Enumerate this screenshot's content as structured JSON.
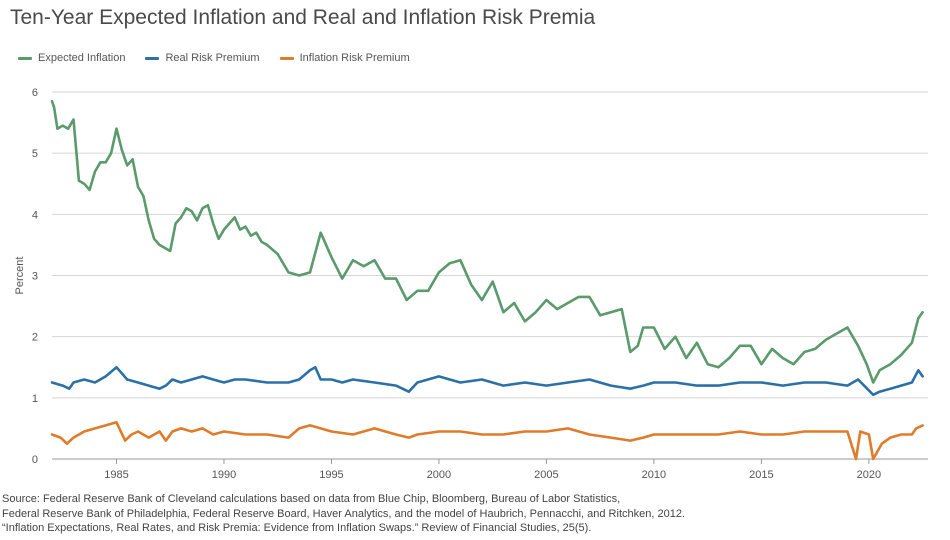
{
  "page": {
    "title": "Ten-Year Expected Inflation and Real and Inflation Risk Premia",
    "source_lines": [
      "Source: Federal Reserve Bank of Cleveland calculations based on data from Blue Chip, Bloomberg, Bureau of Labor Statistics,",
      "Federal Reserve Bank of Philadelphia, Federal Reserve Board, Haver Analytics, and the model of Haubrich, Pennacchi, and Ritchken, 2012.",
      "“Inflation Expectations, Real Rates, and Risk Premia: Evidence from Inflation Swaps.” Review of Financial Studies, 25(5)."
    ]
  },
  "chart_data": {
    "type": "line",
    "title": "Ten-Year Expected Inflation and Real and Inflation Risk Premia",
    "xlabel": "",
    "ylabel": "Percent",
    "xlim": [
      1982.0,
      2022.75
    ],
    "ylim": [
      0,
      6
    ],
    "yticks": [
      "0",
      "1",
      "2",
      "3",
      "4",
      "5",
      "6"
    ],
    "xticks": [
      "1985",
      "1990",
      "1995",
      "2000",
      "2005",
      "2010",
      "2015",
      "2020"
    ],
    "grid": "horizontal",
    "legend_position": "top-left",
    "series": [
      {
        "name": "Expected Inflation",
        "color": "#5a9a6b",
        "x": [
          1982.0,
          1982.1,
          1982.25,
          1982.5,
          1982.75,
          1983.0,
          1983.25,
          1983.5,
          1983.75,
          1984.0,
          1984.25,
          1984.5,
          1984.75,
          1985.0,
          1985.25,
          1985.5,
          1985.75,
          1986.0,
          1986.25,
          1986.5,
          1986.75,
          1987.0,
          1987.25,
          1987.5,
          1987.75,
          1988.0,
          1988.25,
          1988.5,
          1988.75,
          1989.0,
          1989.25,
          1989.5,
          1989.75,
          1990.0,
          1990.25,
          1990.5,
          1990.75,
          1991.0,
          1991.25,
          1991.5,
          1991.75,
          1992.0,
          1992.5,
          1993.0,
          1993.5,
          1994.0,
          1994.5,
          1995.0,
          1995.5,
          1996.0,
          1996.5,
          1997.0,
          1997.5,
          1998.0,
          1998.5,
          1999.0,
          1999.5,
          2000.0,
          2000.5,
          2001.0,
          2001.5,
          2002.0,
          2002.5,
          2003.0,
          2003.5,
          2004.0,
          2004.5,
          2005.0,
          2005.5,
          2006.0,
          2006.5,
          2007.0,
          2007.5,
          2008.0,
          2008.5,
          2008.9,
          2009.25,
          2009.5,
          2010.0,
          2010.5,
          2011.0,
          2011.5,
          2012.0,
          2012.5,
          2013.0,
          2013.5,
          2014.0,
          2014.5,
          2015.0,
          2015.5,
          2016.0,
          2016.5,
          2017.0,
          2017.5,
          2018.0,
          2018.5,
          2019.0,
          2019.5,
          2019.9,
          2020.2,
          2020.5,
          2021.0,
          2021.5,
          2022.0,
          2022.3,
          2022.5
        ],
        "values": [
          5.85,
          5.75,
          5.4,
          5.45,
          5.4,
          5.55,
          4.55,
          4.5,
          4.4,
          4.7,
          4.85,
          4.85,
          5.0,
          5.4,
          5.05,
          4.8,
          4.9,
          4.45,
          4.3,
          3.9,
          3.6,
          3.5,
          3.45,
          3.4,
          3.85,
          3.95,
          4.1,
          4.05,
          3.9,
          4.1,
          4.15,
          3.85,
          3.6,
          3.75,
          3.85,
          3.95,
          3.75,
          3.8,
          3.65,
          3.7,
          3.55,
          3.5,
          3.35,
          3.05,
          3.0,
          3.05,
          3.7,
          3.3,
          2.95,
          3.25,
          3.15,
          3.25,
          2.95,
          2.95,
          2.6,
          2.75,
          2.75,
          3.05,
          3.2,
          3.25,
          2.85,
          2.6,
          2.9,
          2.4,
          2.55,
          2.25,
          2.4,
          2.6,
          2.45,
          2.55,
          2.65,
          2.65,
          2.35,
          2.4,
          2.45,
          1.75,
          1.85,
          2.15,
          2.15,
          1.8,
          2.0,
          1.65,
          1.9,
          1.55,
          1.5,
          1.65,
          1.85,
          1.85,
          1.55,
          1.8,
          1.65,
          1.55,
          1.75,
          1.8,
          1.95,
          2.05,
          2.15,
          1.85,
          1.55,
          1.25,
          1.45,
          1.55,
          1.7,
          1.9,
          2.3,
          2.4
        ]
      },
      {
        "name": "Real Risk Premium",
        "color": "#2b70a6",
        "x": [
          1982.0,
          1982.5,
          1982.8,
          1983.0,
          1983.5,
          1984.0,
          1984.5,
          1985.0,
          1985.25,
          1985.5,
          1986.0,
          1986.5,
          1987.0,
          1987.3,
          1987.6,
          1988.0,
          1988.5,
          1989.0,
          1989.5,
          1990.0,
          1990.5,
          1991.0,
          1992.0,
          1993.0,
          1993.5,
          1994.0,
          1994.25,
          1994.5,
          1995.0,
          1995.5,
          1996.0,
          1997.0,
          1998.0,
          1998.6,
          1999.0,
          2000.0,
          2000.5,
          2001.0,
          2002.0,
          2003.0,
          2004.0,
          2005.0,
          2006.0,
          2007.0,
          2008.0,
          2008.9,
          2009.5,
          2010.0,
          2011.0,
          2012.0,
          2013.0,
          2014.0,
          2015.0,
          2016.0,
          2017.0,
          2018.0,
          2019.0,
          2019.5,
          2020.2,
          2020.5,
          2021.0,
          2021.5,
          2022.0,
          2022.3,
          2022.5
        ],
        "values": [
          1.25,
          1.2,
          1.15,
          1.25,
          1.3,
          1.25,
          1.35,
          1.5,
          1.4,
          1.3,
          1.25,
          1.2,
          1.15,
          1.2,
          1.3,
          1.25,
          1.3,
          1.35,
          1.3,
          1.25,
          1.3,
          1.3,
          1.25,
          1.25,
          1.3,
          1.45,
          1.5,
          1.3,
          1.3,
          1.25,
          1.3,
          1.25,
          1.2,
          1.1,
          1.25,
          1.35,
          1.3,
          1.25,
          1.3,
          1.2,
          1.25,
          1.2,
          1.25,
          1.3,
          1.2,
          1.15,
          1.2,
          1.25,
          1.25,
          1.2,
          1.2,
          1.25,
          1.25,
          1.2,
          1.25,
          1.25,
          1.2,
          1.3,
          1.05,
          1.1,
          1.15,
          1.2,
          1.25,
          1.45,
          1.35
        ]
      },
      {
        "name": "Inflation Risk Premium",
        "color": "#e07b2a",
        "x": [
          1982.0,
          1982.4,
          1982.7,
          1983.0,
          1983.5,
          1984.0,
          1984.5,
          1985.0,
          1985.4,
          1985.7,
          1986.0,
          1986.5,
          1987.0,
          1987.3,
          1987.6,
          1988.0,
          1988.5,
          1989.0,
          1989.5,
          1990.0,
          1991.0,
          1992.0,
          1993.0,
          1993.5,
          1994.0,
          1994.5,
          1995.0,
          1996.0,
          1997.0,
          1998.0,
          1998.6,
          1999.0,
          2000.0,
          2001.0,
          2002.0,
          2003.0,
          2004.0,
          2005.0,
          2006.0,
          2007.0,
          2008.0,
          2008.9,
          2009.5,
          2010.0,
          2011.0,
          2012.0,
          2013.0,
          2014.0,
          2015.0,
          2016.0,
          2017.0,
          2018.0,
          2019.0,
          2019.4,
          2019.6,
          2020.0,
          2020.2,
          2020.6,
          2021.0,
          2021.5,
          2022.0,
          2022.2,
          2022.5
        ],
        "values": [
          0.4,
          0.35,
          0.25,
          0.35,
          0.45,
          0.5,
          0.55,
          0.6,
          0.3,
          0.4,
          0.45,
          0.35,
          0.45,
          0.3,
          0.45,
          0.5,
          0.45,
          0.5,
          0.4,
          0.45,
          0.4,
          0.4,
          0.35,
          0.5,
          0.55,
          0.5,
          0.45,
          0.4,
          0.5,
          0.4,
          0.35,
          0.4,
          0.45,
          0.45,
          0.4,
          0.4,
          0.45,
          0.45,
          0.5,
          0.4,
          0.35,
          0.3,
          0.35,
          0.4,
          0.4,
          0.4,
          0.4,
          0.45,
          0.4,
          0.4,
          0.45,
          0.45,
          0.45,
          0.0,
          0.45,
          0.4,
          0.0,
          0.25,
          0.35,
          0.4,
          0.4,
          0.5,
          0.55
        ]
      }
    ]
  }
}
